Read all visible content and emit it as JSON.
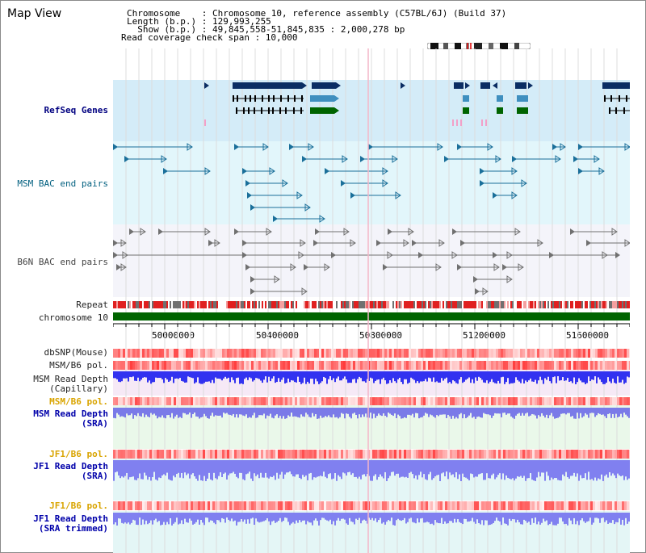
{
  "title": "Map View",
  "info": {
    "line1": "Chromosome    : Chromosome 10, reference assembly (C57BL/6J) (Build 37)",
    "line2": "Length (b.p.) : 129,993,255",
    "line3": "  Show (b.p.) : 49,845,558-51,845,835 : 2,000,278 bp",
    "line4": "Read coverage check span : 10,000"
  },
  "tracks": {
    "refseq": "RefSeq Genes",
    "msm_bac": "MSM BAC end pairs",
    "b6n_bac": "B6N BAC end pairs",
    "repeat": "Repeat",
    "chrom": "chromosome 10",
    "dbsnp": "dbSNP(Mouse)",
    "msm_b6_pol_cap": "MSM/B6 pol.",
    "msm_depth_cap_1": "MSM Read Depth",
    "msm_depth_cap_2": "(Capillary)",
    "msm_b6_pol_sra": "MSM/B6 pol.",
    "msm_depth_sra_1": "MSM Read Depth",
    "msm_depth_sra_2": "(SRA)",
    "jf1_pol_1": "JF1/B6 pol.",
    "jf1_depth_1": "JF1 Read Depth",
    "jf1_depth_1b": "(SRA)",
    "jf1_pol_2": "JF1/B6 pol.",
    "jf1_depth_2": "JF1 Read Depth",
    "jf1_depth_2b": "(SRA trimmed)"
  },
  "axis": {
    "ticks": [
      "50000000",
      "50400000",
      "50800000",
      "51200000",
      "51600000"
    ]
  },
  "colors": {
    "refseq_bg": "#d4ecf8",
    "bac_bg": "#e2f6fb",
    "depth_blue": "#3232f0",
    "depth_light": "#8080f0",
    "chrom_green": "#006400"
  }
}
